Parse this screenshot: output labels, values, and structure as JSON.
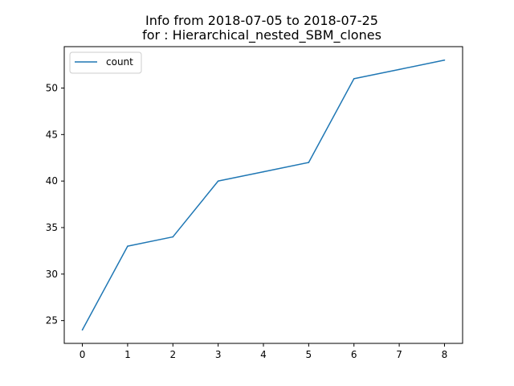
{
  "chart_data": {
    "type": "line",
    "title_line1": "Info from 2018-07-05 to 2018-07-25",
    "title_line2": "for  : Hierarchical_nested_SBM_clones",
    "xlabel": "",
    "ylabel": "",
    "x": [
      0,
      1,
      2,
      3,
      4,
      5,
      6,
      7,
      8
    ],
    "series": [
      {
        "name": "count",
        "color": "#1f77b4",
        "values": [
          24,
          33,
          34,
          40,
          41,
          42,
          51,
          52,
          53
        ]
      }
    ],
    "xlim": [
      -0.4,
      8.4
    ],
    "ylim": [
      22.55,
      54.45
    ],
    "xticks": [
      0,
      1,
      2,
      3,
      4,
      5,
      6,
      7,
      8
    ],
    "yticks": [
      25,
      30,
      35,
      40,
      45,
      50
    ],
    "grid": false,
    "legend_position": "upper-left"
  }
}
